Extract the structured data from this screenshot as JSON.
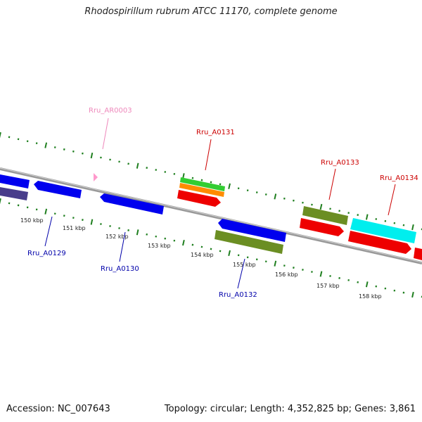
{
  "title": "Rhodospirillum rubrum ATCC 11170, complete genome",
  "footer": {
    "accession": "Accession: NC_007643",
    "topology": "Topology: circular; Length: 4,352,825 bp; Genes: 3,861"
  },
  "colors": {
    "backbone": "#888888",
    "tick": "#1f7f1f",
    "blue_gene": "#0000ee",
    "red_gene": "#ee0000",
    "olive_gene": "#6b8e23",
    "green_gene": "#32cd32",
    "orange_gene": "#ff8c00",
    "cyan_gene": "#00eeee",
    "slate_gene": "#483d8b",
    "rna_marker": "#ff99cc",
    "label_blue": "#0000aa",
    "label_red": "#cc0000",
    "label_pink": "#ee88bb"
  },
  "scale_labels": [
    "150 kbp",
    "151 kbp",
    "152 kbp",
    "153 kbp",
    "154 kbp",
    "155 kbp",
    "156 kbp",
    "157 kbp",
    "158 kbp"
  ],
  "gene_labels": [
    "Rru_A0129",
    "Rru_A0130",
    "Rru_AR0003",
    "Rru_A0131",
    "Rru_A0132",
    "Rru_A0133",
    "Rru_A0134"
  ]
}
